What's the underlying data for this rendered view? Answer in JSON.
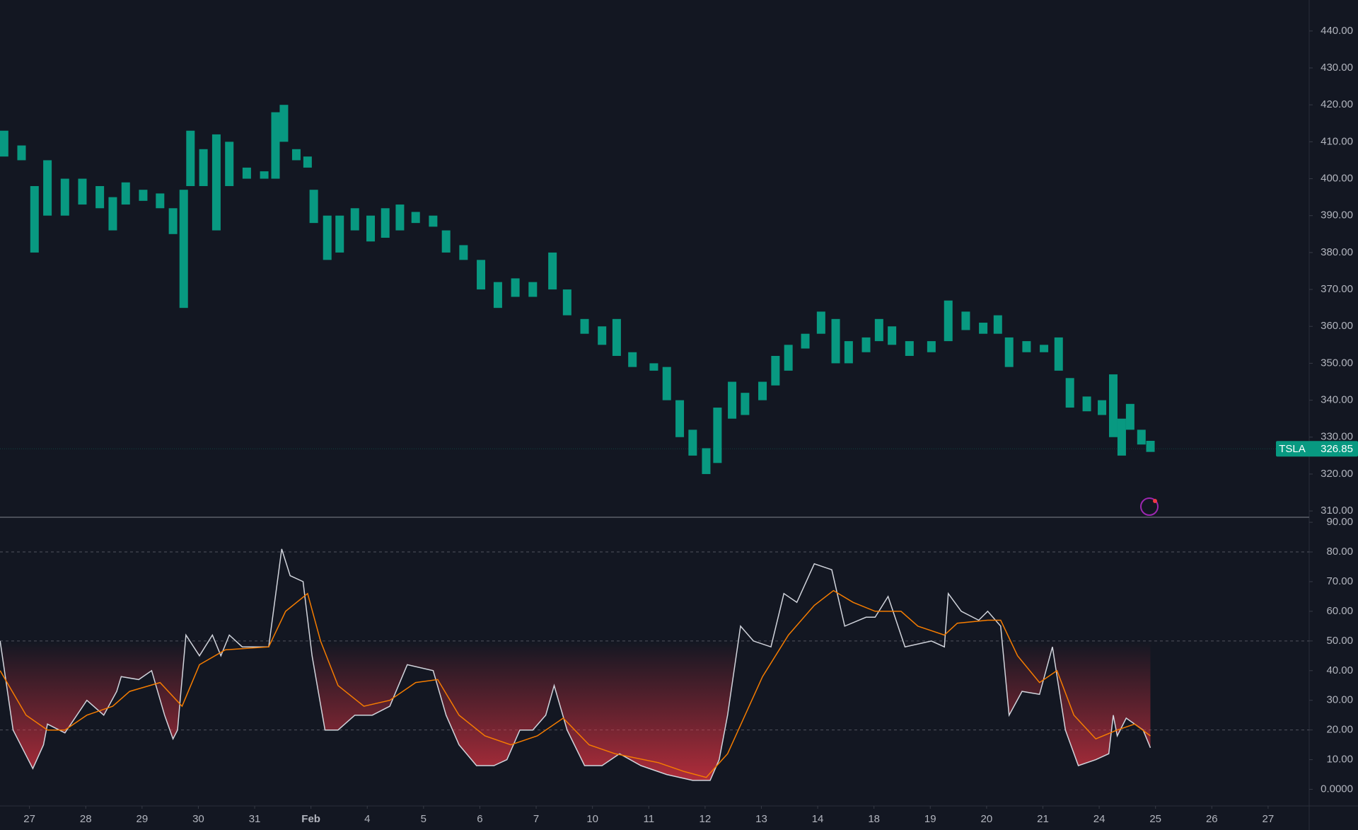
{
  "chart_data": [
    {
      "type": "ohlc",
      "color": "#089981",
      "grid": false,
      "xlim": [
        -0.523,
        22.73
      ],
      "ylim": [
        308.3,
        448.4
      ],
      "yticks": [
        {
          "value": 310,
          "label": "310.00"
        },
        {
          "value": 320,
          "label": "320.00"
        },
        {
          "value": 330,
          "label": "330.00"
        },
        {
          "value": 340,
          "label": "340.00"
        },
        {
          "value": 350,
          "label": "350.00"
        },
        {
          "value": 360,
          "label": "360.00"
        },
        {
          "value": 370,
          "label": "370.00"
        },
        {
          "value": 380,
          "label": "380.00"
        },
        {
          "value": 390,
          "label": "390.00"
        },
        {
          "value": 400,
          "label": "400.00"
        },
        {
          "value": 410,
          "label": "410.00"
        },
        {
          "value": 420,
          "label": "420.00"
        },
        {
          "value": 430,
          "label": "430.00"
        },
        {
          "value": 440,
          "label": "440.00"
        }
      ],
      "x": [
        -0.45,
        -0.14,
        0.09,
        0.32,
        0.63,
        0.94,
        1.25,
        1.48,
        1.71,
        2.02,
        2.32,
        2.55,
        2.74,
        2.86,
        3.09,
        3.32,
        3.55,
        3.86,
        4.17,
        4.37,
        4.52,
        4.74,
        4.94,
        5.05,
        5.29,
        5.51,
        5.78,
        6.06,
        6.32,
        6.58,
        6.86,
        7.17,
        7.4,
        7.71,
        8.02,
        8.32,
        8.63,
        8.94,
        9.29,
        9.55,
        9.86,
        10.17,
        10.43,
        10.71,
        11.09,
        11.32,
        11.55,
        11.78,
        12.02,
        12.22,
        12.48,
        12.71,
        13.02,
        13.25,
        13.48,
        13.78,
        14.06,
        14.32,
        14.55,
        14.86,
        15.09,
        15.32,
        15.63,
        16.02,
        16.32,
        16.63,
        16.94,
        17.2,
        17.4,
        17.71,
        18.02,
        18.28,
        18.48,
        18.78,
        19.05,
        19.25,
        19.4,
        19.55,
        19.75,
        19.91
      ],
      "low": [
        406,
        405,
        380,
        390,
        390,
        393,
        392,
        386,
        393,
        394,
        392,
        385,
        365,
        398,
        398,
        386,
        398,
        400,
        400,
        400,
        410,
        405,
        403,
        388,
        378,
        380,
        386,
        383,
        384,
        386,
        388,
        387,
        380,
        378,
        370,
        365,
        368,
        368,
        370,
        363,
        358,
        355,
        352,
        349,
        348,
        340,
        330,
        325,
        320,
        323,
        335,
        336,
        340,
        344,
        348,
        354,
        358,
        350,
        350,
        353,
        356,
        355,
        352,
        353,
        356,
        359,
        358,
        358,
        349,
        353,
        353,
        348,
        338,
        337,
        336,
        330,
        325,
        332,
        328,
        326
      ],
      "high": [
        413,
        409,
        398,
        405,
        400,
        400,
        398,
        395,
        399,
        397,
        396,
        392,
        397,
        413,
        408,
        412,
        410,
        403,
        402,
        418,
        420,
        408,
        406,
        397,
        390,
        390,
        392,
        390,
        392,
        393,
        391,
        390,
        386,
        382,
        378,
        372,
        373,
        372,
        380,
        370,
        362,
        360,
        362,
        353,
        350,
        349,
        340,
        332,
        327,
        338,
        345,
        342,
        345,
        352,
        355,
        358,
        364,
        362,
        356,
        357,
        362,
        360,
        356,
        356,
        367,
        364,
        361,
        363,
        357,
        356,
        355,
        357,
        346,
        341,
        340,
        347,
        335,
        339,
        332,
        329
      ],
      "last_price": {
        "symbol": "TSLA",
        "value": 326.85,
        "color": "#089981"
      }
    },
    {
      "type": "line",
      "xlim": [
        -0.523,
        22.73
      ],
      "ylim": [
        -5.6,
        91.7
      ],
      "bands": [
        20,
        50,
        80
      ],
      "yticks": [
        {
          "value": 0,
          "label": "0.0000"
        },
        {
          "value": 10,
          "label": "10.00"
        },
        {
          "value": 20,
          "label": "20.00"
        },
        {
          "value": 30,
          "label": "30.00"
        },
        {
          "value": 40,
          "label": "40.00"
        },
        {
          "value": 50,
          "label": "50.00"
        },
        {
          "value": 60,
          "label": "60.00"
        },
        {
          "value": 70,
          "label": "70.00"
        },
        {
          "value": 80,
          "label": "80.00"
        },
        {
          "value": 90,
          "label": "90.00"
        }
      ],
      "xticks": [
        {
          "value": 0,
          "label": "27"
        },
        {
          "value": 1,
          "label": "28"
        },
        {
          "value": 2,
          "label": "29"
        },
        {
          "value": 3,
          "label": "30"
        },
        {
          "value": 4,
          "label": "31"
        },
        {
          "value": 5,
          "label": "Feb"
        },
        {
          "value": 6,
          "label": "4"
        },
        {
          "value": 7,
          "label": "5"
        },
        {
          "value": 8,
          "label": "6"
        },
        {
          "value": 9,
          "label": "7"
        },
        {
          "value": 10,
          "label": "10"
        },
        {
          "value": 11,
          "label": "11"
        },
        {
          "value": 12,
          "label": "12"
        },
        {
          "value": 13,
          "label": "13"
        },
        {
          "value": 14,
          "label": "14"
        },
        {
          "value": 15,
          "label": "18"
        },
        {
          "value": 16,
          "label": "19"
        },
        {
          "value": 17,
          "label": "20"
        },
        {
          "value": 18,
          "label": "21"
        },
        {
          "value": 19,
          "label": "24"
        },
        {
          "value": 20,
          "label": "25"
        },
        {
          "value": 21,
          "label": "26"
        },
        {
          "value": 22,
          "label": "27"
        }
      ],
      "series": [
        {
          "color": "#d1d4dc",
          "x": [
            -0.52,
            -0.29,
            0.06,
            0.25,
            0.32,
            0.63,
            1.02,
            1.32,
            1.55,
            1.63,
            1.94,
            2.17,
            2.4,
            2.55,
            2.63,
            2.78,
            3.02,
            3.25,
            3.4,
            3.55,
            3.78,
            4.25,
            4.48,
            4.63,
            4.86,
            5.02,
            5.25,
            5.48,
            5.78,
            6.09,
            6.4,
            6.71,
            7.17,
            7.4,
            7.63,
            7.94,
            8.25,
            8.48,
            8.71,
            8.94,
            9.17,
            9.32,
            9.55,
            9.86,
            10.17,
            10.48,
            10.86,
            11.32,
            11.78,
            12.09,
            12.25,
            12.4,
            12.63,
            12.86,
            13.17,
            13.4,
            13.63,
            13.94,
            14.25,
            14.48,
            14.86,
            15.02,
            15.25,
            15.55,
            16.02,
            16.25,
            16.32,
            16.55,
            16.86,
            17.02,
            17.25,
            17.4,
            17.63,
            17.94,
            18.17,
            18.4,
            18.63,
            18.94,
            19.17,
            19.25,
            19.32,
            19.48,
            19.78,
            19.91
          ],
          "values": [
            50,
            20,
            7,
            15,
            22,
            19,
            30,
            25,
            33,
            38,
            37,
            40,
            25,
            17,
            20,
            52,
            45,
            52,
            45,
            52,
            48,
            48,
            81,
            72,
            70,
            45,
            20,
            20,
            25,
            25,
            28,
            42,
            40,
            25,
            15,
            8,
            8,
            10,
            20,
            20,
            25,
            35,
            20,
            8,
            8,
            12,
            8,
            5,
            3,
            3,
            10,
            25,
            55,
            50,
            48,
            66,
            63,
            76,
            74,
            55,
            58,
            58,
            65,
            48,
            50,
            48,
            66,
            60,
            57,
            60,
            55,
            25,
            33,
            32,
            48,
            20,
            8,
            10,
            12,
            25,
            18,
            24,
            20,
            14
          ]
        },
        {
          "color": "#f57c00",
          "x": [
            -0.52,
            -0.06,
            0.32,
            0.63,
            1.02,
            1.48,
            1.78,
            2.32,
            2.71,
            3.02,
            3.48,
            4.25,
            4.55,
            4.94,
            5.17,
            5.48,
            5.94,
            6.4,
            6.86,
            7.25,
            7.63,
            8.09,
            8.55,
            9.02,
            9.48,
            9.94,
            10.4,
            11.17,
            11.63,
            12.02,
            12.4,
            12.71,
            13.02,
            13.48,
            13.94,
            14.28,
            14.63,
            15.02,
            15.48,
            15.78,
            16.25,
            16.48,
            17.02,
            17.25,
            17.55,
            17.94,
            18.25,
            18.55,
            18.94,
            19.32,
            19.63,
            19.91
          ],
          "values": [
            40,
            25,
            20,
            20,
            25,
            28,
            33,
            36,
            28,
            42,
            47,
            48,
            60,
            66,
            50,
            35,
            28,
            30,
            36,
            37,
            25,
            18,
            15,
            18,
            24,
            15,
            12,
            9,
            6,
            4,
            12,
            25,
            38,
            52,
            62,
            67,
            63,
            60,
            60,
            55,
            52,
            56,
            57,
            57,
            45,
            36,
            40,
            25,
            17,
            20,
            22,
            18
          ]
        }
      ]
    }
  ]
}
